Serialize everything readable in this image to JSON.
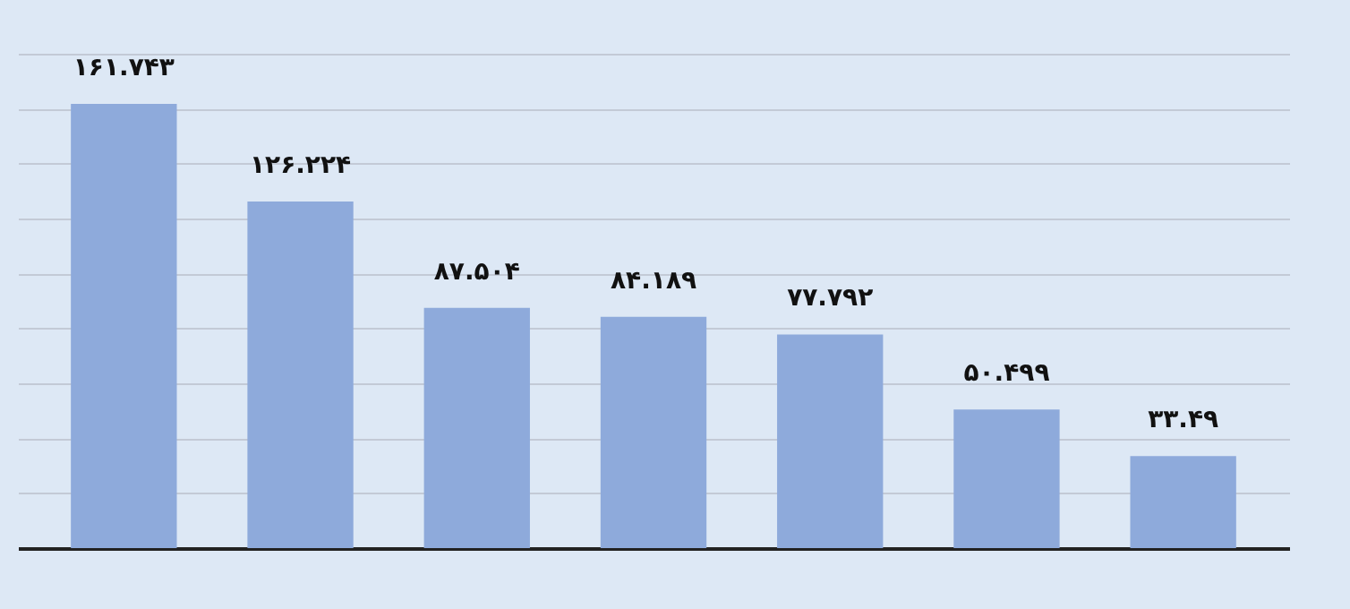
{
  "chart_data": {
    "type": "bar",
    "categories": [
      null,
      null,
      null,
      null,
      null,
      null,
      null
    ],
    "values": [
      161.743,
      126.224,
      87.504,
      84.189,
      77.792,
      50.499,
      33.49
    ],
    "value_labels": [
      "۱۶۱.۷۴۳",
      "۱۲۶.۲۲۴",
      "۸۷.۵۰۴",
      "۸۴.۱۸۹",
      "۷۷.۷۹۲",
      "۵۰.۴۹۹",
      "۳۳.۴۹"
    ],
    "color": "#8eaadb",
    "grid": "y"
  }
}
